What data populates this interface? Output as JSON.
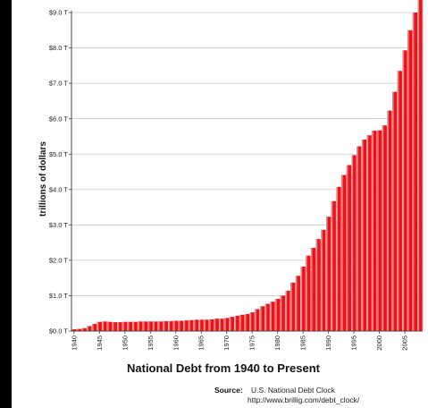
{
  "chart_data": {
    "type": "bar",
    "title": "National Debt from 1940 to Present",
    "ylabel": "trillions of dollars",
    "xlabel": "",
    "ylim": [
      0,
      9
    ],
    "y_ticks": [
      0,
      1,
      2,
      3,
      4,
      5,
      6,
      7,
      8,
      9
    ],
    "y_tick_labels": [
      "$0.0 T",
      "$1.0 T",
      "$2.0 T",
      "$3.0 T",
      "$4.0 T",
      "$5.0 T",
      "$6.0 T",
      "$7.0 T",
      "$8.0 T",
      "$9.0 T"
    ],
    "x_tick_labels": [
      "1940",
      "1945",
      "1950",
      "1955",
      "1960",
      "1965",
      "1970",
      "1975",
      "1980",
      "1985",
      "1990",
      "1995",
      "2000",
      "2005"
    ],
    "grid": true,
    "bar_color": "#e8141b",
    "categories": [
      "1940",
      "1941",
      "1942",
      "1943",
      "1944",
      "1945",
      "1946",
      "1947",
      "1948",
      "1949",
      "1950",
      "1951",
      "1952",
      "1953",
      "1954",
      "1955",
      "1956",
      "1957",
      "1958",
      "1959",
      "1960",
      "1961",
      "1962",
      "1963",
      "1964",
      "1965",
      "1966",
      "1967",
      "1968",
      "1969",
      "1970",
      "1971",
      "1972",
      "1973",
      "1974",
      "1975",
      "1976",
      "1977",
      "1978",
      "1979",
      "1980",
      "1981",
      "1982",
      "1983",
      "1984",
      "1985",
      "1986",
      "1987",
      "1988",
      "1989",
      "1990",
      "1991",
      "1992",
      "1993",
      "1994",
      "1995",
      "1996",
      "1997",
      "1998",
      "1999",
      "2000",
      "2001",
      "2002",
      "2003",
      "2004",
      "2005",
      "2006",
      "2007",
      "2008"
    ],
    "values": [
      0.05,
      0.06,
      0.08,
      0.14,
      0.2,
      0.26,
      0.27,
      0.26,
      0.25,
      0.25,
      0.26,
      0.26,
      0.26,
      0.27,
      0.27,
      0.27,
      0.27,
      0.27,
      0.28,
      0.28,
      0.29,
      0.29,
      0.3,
      0.31,
      0.32,
      0.32,
      0.32,
      0.33,
      0.35,
      0.35,
      0.37,
      0.4,
      0.43,
      0.46,
      0.48,
      0.53,
      0.62,
      0.7,
      0.77,
      0.83,
      0.91,
      1.0,
      1.14,
      1.37,
      1.56,
      1.82,
      2.13,
      2.35,
      2.6,
      2.86,
      3.23,
      3.67,
      4.07,
      4.41,
      4.69,
      4.97,
      5.22,
      5.41,
      5.53,
      5.66,
      5.67,
      5.81,
      6.23,
      6.76,
      7.35,
      7.93,
      8.5,
      9.0,
      9.4
    ]
  },
  "source": {
    "label": "Source:",
    "text": "U.S. National Debt Clock",
    "url": "http://www.brillig.com/debt_clock/"
  }
}
